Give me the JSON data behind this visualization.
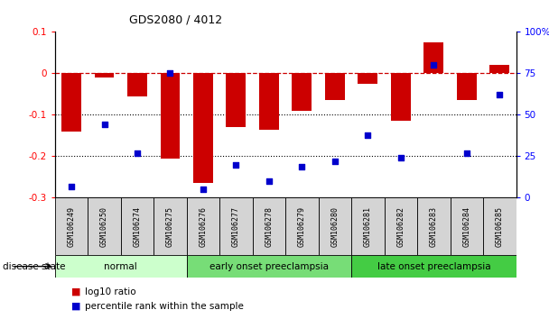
{
  "title": "GDS2080 / 4012",
  "samples": [
    "GSM106249",
    "GSM106250",
    "GSM106274",
    "GSM106275",
    "GSM106276",
    "GSM106277",
    "GSM106278",
    "GSM106279",
    "GSM106280",
    "GSM106281",
    "GSM106282",
    "GSM106283",
    "GSM106284",
    "GSM106285"
  ],
  "log10_ratio": [
    -0.14,
    -0.01,
    -0.055,
    -0.205,
    -0.265,
    -0.13,
    -0.135,
    -0.09,
    -0.065,
    -0.025,
    -0.115,
    0.075,
    -0.065,
    0.02
  ],
  "percentile_rank": [
    7,
    44,
    27,
    75,
    5,
    20,
    10,
    19,
    22,
    38,
    24,
    80,
    27,
    62
  ],
  "ylim_left": [
    -0.3,
    0.1
  ],
  "ylim_right": [
    0,
    100
  ],
  "bar_color": "#cc0000",
  "dot_color": "#0000cc",
  "dashed_line_color": "#cc0000",
  "dotted_line_color": "#000000",
  "groups": [
    {
      "label": "normal",
      "start": 0,
      "end": 4,
      "color": "#ccffcc"
    },
    {
      "label": "early onset preeclampsia",
      "start": 4,
      "end": 9,
      "color": "#77dd77"
    },
    {
      "label": "late onset preeclampsia",
      "start": 9,
      "end": 14,
      "color": "#44cc44"
    }
  ],
  "legend_bar_label": "log10 ratio",
  "legend_dot_label": "percentile rank within the sample",
  "disease_state_label": "disease state",
  "right_ytick_labels": [
    "0",
    "25",
    "50",
    "75",
    "100%"
  ],
  "right_ytick_values": [
    0,
    25,
    50,
    75,
    100
  ],
  "left_ytick_labels": [
    "-0.3",
    "-0.2",
    "-0.1",
    "0",
    "0.1"
  ],
  "left_ytick_values": [
    -0.3,
    -0.2,
    -0.1,
    0.0,
    0.1
  ]
}
